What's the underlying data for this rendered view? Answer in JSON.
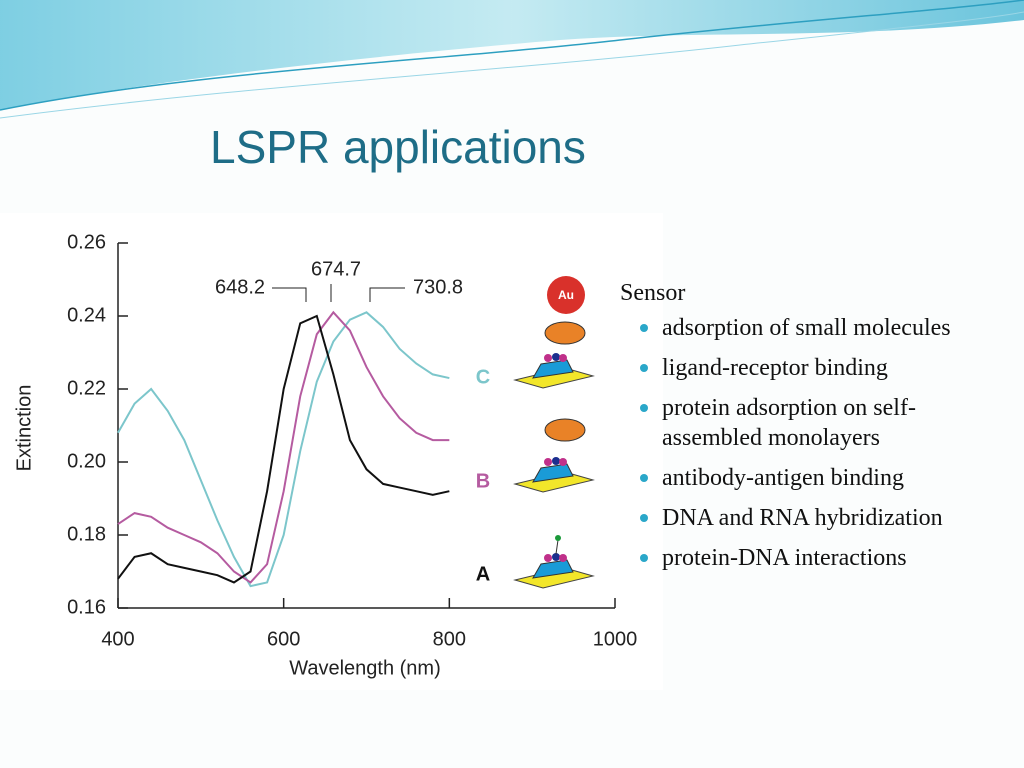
{
  "title": "LSPR applications",
  "list": {
    "heading": "Sensor",
    "items": [
      "adsorption of small molecules",
      "ligand-receptor binding",
      "protein adsorption on self-assembled monolayers",
      "antibody-antigen binding",
      "DNA and RNA hybridization",
      "protein-DNA interactions"
    ]
  },
  "chart_data": {
    "type": "line",
    "x_label": "Wavelength (nm)",
    "y_label": "Extinction",
    "annotations": [
      "648.2",
      "674.7",
      "730.8"
    ],
    "x": [
      400,
      420,
      440,
      460,
      480,
      500,
      520,
      540,
      560,
      580,
      600,
      620,
      640,
      660,
      680,
      700,
      720,
      740,
      760,
      780,
      800
    ],
    "series": [
      {
        "name": "C",
        "color": "#7cc6cb",
        "values": [
          0.208,
          0.216,
          0.22,
          0.214,
          0.206,
          0.195,
          0.184,
          0.174,
          0.166,
          0.167,
          0.18,
          0.203,
          0.222,
          0.233,
          0.239,
          0.241,
          0.237,
          0.231,
          0.227,
          0.224,
          0.223
        ]
      },
      {
        "name": "B",
        "color": "#b55ba0",
        "values": [
          0.183,
          0.186,
          0.185,
          0.182,
          0.18,
          0.178,
          0.175,
          0.17,
          0.167,
          0.172,
          0.192,
          0.218,
          0.235,
          0.241,
          0.236,
          0.226,
          0.218,
          0.212,
          0.208,
          0.206,
          0.206
        ]
      },
      {
        "name": "A",
        "color": "#111111",
        "values": [
          0.168,
          0.174,
          0.175,
          0.172,
          0.171,
          0.17,
          0.169,
          0.167,
          0.17,
          0.192,
          0.22,
          0.238,
          0.24,
          0.224,
          0.206,
          0.198,
          0.194,
          0.193,
          0.192,
          0.191,
          0.192
        ]
      }
    ],
    "xlim": [
      400,
      1000
    ],
    "xticks": [
      400,
      600,
      800,
      1000
    ],
    "ylim": [
      0.16,
      0.26
    ],
    "yticks": [
      {
        "value": 0.16,
        "label": "0.16"
      },
      {
        "value": 0.18,
        "label": "0.18"
      },
      {
        "value": 0.2,
        "label": "0.20"
      },
      {
        "value": 0.22,
        "label": "0.22"
      },
      {
        "value": 0.24,
        "label": "0.24"
      },
      {
        "value": 0.26,
        "label": "0.26"
      }
    ]
  }
}
